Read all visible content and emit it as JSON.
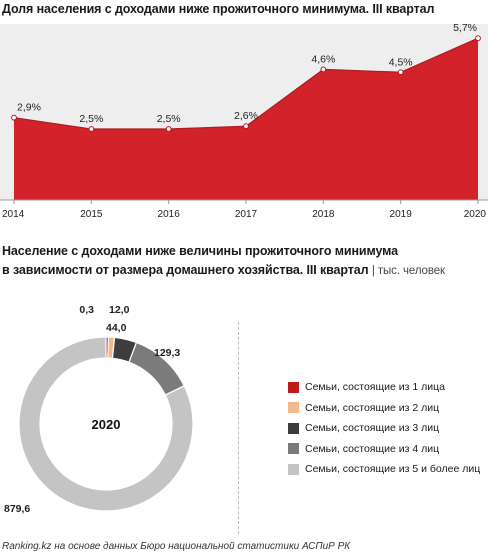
{
  "title1": "Доля населения с доходами ниже прожиточного минимума. III квартал",
  "title2_line1": "Население с доходами ниже величины прожиточного минимума",
  "title2_line2": "в зависимости от размера домашнего хозяйства. III квартал",
  "title2_unit": "| тыс. человек",
  "footer": "Ranking.kz на основе данных Бюро национальной статистики АСПиР РК",
  "donut_center_label": "2020",
  "chart_data": [
    {
      "type": "area",
      "title": "Доля населения с доходами ниже прожиточного минимума. III квартал",
      "x": [
        "2014",
        "2015",
        "2016",
        "2017",
        "2018",
        "2019",
        "2020"
      ],
      "values": [
        2.9,
        2.5,
        2.5,
        2.6,
        4.6,
        4.5,
        5.7
      ],
      "data_labels": [
        "2,9%",
        "2,5%",
        "2,5%",
        "2,6%",
        "4,6%",
        "4,5%",
        "5,7%"
      ],
      "ylim": [
        0,
        6.2
      ],
      "color": "#d2232a",
      "background": "#eeeeee"
    },
    {
      "type": "pie",
      "title": "Население с доходами ниже величины прожиточного минимума в зависимости от размера домашнего хозяйства. III квартал",
      "center_label": "2020",
      "categories": [
        "Семьи, состоящие из 1 лица",
        "Семьи, состоящие из 2 лиц",
        "Семьи, состоящие из 3 лиц",
        "Семьи, состоящие из 4 лиц",
        "Семьи, состоящие из 5 и более лиц"
      ],
      "values": [
        0.3,
        12.0,
        44.0,
        129.3,
        879.6
      ],
      "data_labels": [
        "0,3",
        "12,0",
        "44,0",
        "129,3",
        "879,6"
      ],
      "colors": [
        "#c0191c",
        "#f5b98e",
        "#3d3d3d",
        "#7b7b7b",
        "#c4c4c4"
      ],
      "legend_position": "right"
    }
  ]
}
